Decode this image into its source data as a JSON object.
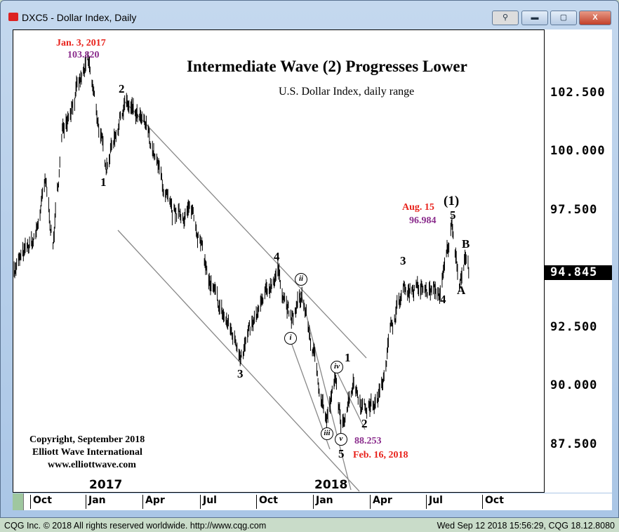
{
  "window": {
    "title": "DXC5 - Dollar Index, Daily",
    "buttons": {
      "link": "⚲",
      "minimize": "▬",
      "maximize": "▢",
      "close": "X"
    }
  },
  "status": {
    "left": "CQG Inc. © 2018 All rights reserved worldwide. http://www.cqg.com",
    "right": "Wed Sep 12 2018 15:56:29, CQG 18.12.8080"
  },
  "chart_data": {
    "type": "bar",
    "title": "Intermediate Wave (2) Progresses Lower",
    "subtitle": "U.S. Dollar Index, daily range",
    "y_ticks": [
      "102.500",
      "100.000",
      "97.500",
      "92.500",
      "90.000",
      "87.500"
    ],
    "ylim": [
      85.2,
      104.3
    ],
    "last_price": "94.845",
    "x_ticks": [
      "Oct",
      "Jan",
      "Apr",
      "Jul",
      "Oct",
      "Jan",
      "Apr",
      "Jul",
      "Oct"
    ],
    "years": [
      "2017",
      "2018"
    ],
    "path": [
      [
        "2016-09-05",
        95.0
      ],
      [
        "2016-10-09",
        96.3
      ],
      [
        "2016-10-26",
        98.7
      ],
      [
        "2016-11-07",
        96.0
      ],
      [
        "2016-11-23",
        101.1
      ],
      [
        "2017-01-03",
        103.82
      ],
      [
        "2017-01-31",
        99.4
      ],
      [
        "2017-03-03",
        102.1
      ],
      [
        "2017-04-09",
        100.9
      ],
      [
        "2017-05-19",
        97.2
      ],
      [
        "2017-06-22",
        97.5
      ],
      [
        "2017-07-20",
        94.2
      ],
      [
        "2017-09-08",
        91.4
      ],
      [
        "2017-11-05",
        95.0
      ],
      [
        "2017-11-28",
        92.7
      ],
      [
        "2017-12-15",
        93.9
      ],
      [
        "2018-01-24",
        88.5
      ],
      [
        "2018-02-08",
        90.3
      ],
      [
        "2018-02-16",
        88.253
      ],
      [
        "2018-03-08",
        90.2
      ],
      [
        "2018-03-25",
        89.1
      ],
      [
        "2018-04-17",
        89.3
      ],
      [
        "2018-05-10",
        92.7
      ],
      [
        "2018-05-30",
        94.2
      ],
      [
        "2018-07-28",
        94.0
      ],
      [
        "2018-08-15",
        96.984
      ],
      [
        "2018-08-28",
        94.4
      ],
      [
        "2018-09-05",
        95.5
      ],
      [
        "2018-09-12",
        94.845
      ]
    ],
    "annotations": {
      "high_date": "Jan. 3, 2017",
      "high_value": "103.820",
      "aug_date": "Aug. 15",
      "aug_value": "96.984",
      "low_value": "88.253",
      "low_date": "Feb. 16, 2018",
      "waves": {
        "w1": "1",
        "w2": "2",
        "w3": "3",
        "w4": "4",
        "w5": "5",
        "i": "i",
        "ii": "ii",
        "iii": "iii",
        "iv": "iv",
        "v": "v",
        "n1": "1",
        "n2": "2",
        "n3": "3",
        "n4": "4",
        "n5": "5",
        "big1": "(1)",
        "A": "A",
        "B": "B"
      }
    },
    "copyright": [
      "Copyright, September 2018",
      "Elliott Wave International",
      "www.elliottwave.com"
    ]
  }
}
